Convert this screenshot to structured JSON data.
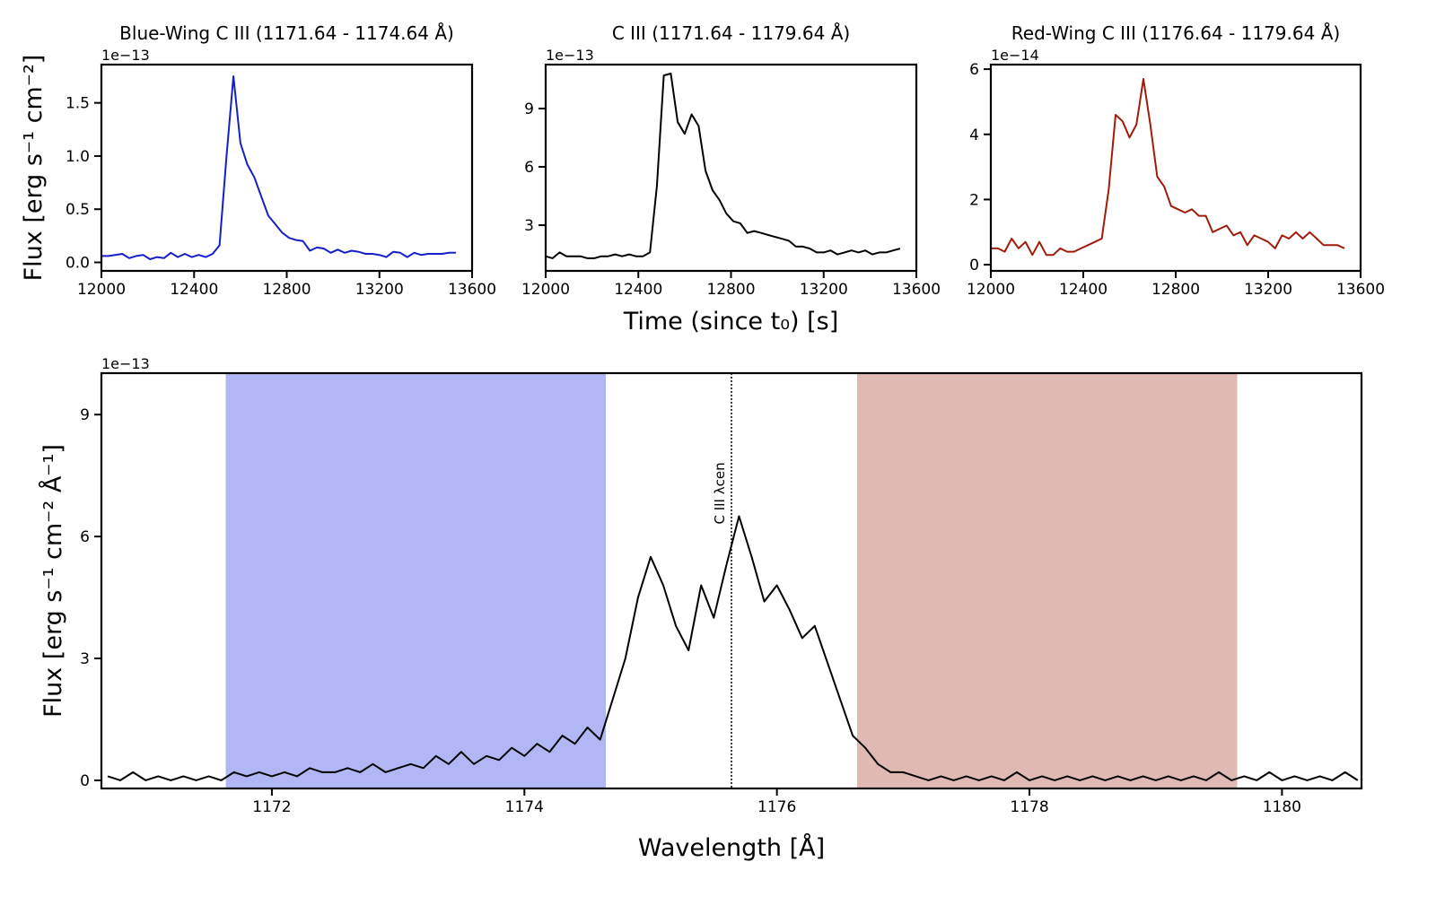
{
  "chart_data": [
    {
      "type": "line",
      "title": "Blue-Wing C III (1171.64 - 1174.64 Å)",
      "offset_label": "1e−13",
      "ylabel": "Flux [erg s⁻¹ cm⁻²]",
      "x": [
        12000,
        12030,
        12060,
        12090,
        12120,
        12150,
        12180,
        12210,
        12240,
        12270,
        12300,
        12330,
        12360,
        12390,
        12420,
        12450,
        12480,
        12510,
        12540,
        12570,
        12600,
        12630,
        12660,
        12690,
        12720,
        12750,
        12780,
        12810,
        12840,
        12870,
        12900,
        12930,
        12960,
        12990,
        13020,
        13050,
        13080,
        13110,
        13140,
        13170,
        13200,
        13230,
        13260,
        13290,
        13320,
        13350,
        13380,
        13410,
        13440,
        13470,
        13500,
        13530
      ],
      "values": [
        0.06,
        0.06,
        0.07,
        0.08,
        0.04,
        0.06,
        0.07,
        0.03,
        0.05,
        0.04,
        0.09,
        0.05,
        0.08,
        0.05,
        0.07,
        0.05,
        0.08,
        0.16,
        1.0,
        1.75,
        1.12,
        0.92,
        0.8,
        0.62,
        0.44,
        0.36,
        0.28,
        0.23,
        0.21,
        0.2,
        0.11,
        0.14,
        0.13,
        0.09,
        0.12,
        0.09,
        0.11,
        0.1,
        0.08,
        0.08,
        0.07,
        0.05,
        0.1,
        0.09,
        0.05,
        0.09,
        0.07,
        0.08,
        0.08,
        0.08,
        0.09,
        0.09
      ],
      "color": "#1520c8",
      "xlim": [
        12000,
        13600
      ],
      "xticks": [
        12000,
        12400,
        12800,
        13200,
        13600
      ],
      "ylim": [
        -0.08,
        1.86
      ],
      "yticks": [
        {
          "value": 0,
          "label": "0.0"
        },
        0.5,
        {
          "value": 1,
          "label": "1.0"
        },
        1.5
      ]
    },
    {
      "type": "line",
      "title": "C III (1171.64 - 1179.64 Å)",
      "offset_label": "1e−13",
      "xlabel": "Time (since t₀) [s]",
      "x": [
        12000,
        12030,
        12060,
        12090,
        12120,
        12150,
        12180,
        12210,
        12240,
        12270,
        12300,
        12330,
        12360,
        12390,
        12420,
        12450,
        12480,
        12510,
        12540,
        12570,
        12600,
        12630,
        12660,
        12690,
        12720,
        12750,
        12780,
        12810,
        12840,
        12870,
        12900,
        12930,
        12960,
        12990,
        13020,
        13050,
        13080,
        13110,
        13140,
        13170,
        13200,
        13230,
        13260,
        13290,
        13320,
        13350,
        13380,
        13410,
        13440,
        13470,
        13500,
        13530
      ],
      "values": [
        1.4,
        1.3,
        1.6,
        1.4,
        1.4,
        1.4,
        1.3,
        1.3,
        1.4,
        1.4,
        1.5,
        1.4,
        1.5,
        1.4,
        1.4,
        1.6,
        5.0,
        10.7,
        10.8,
        8.3,
        7.7,
        8.7,
        8.1,
        5.8,
        4.8,
        4.3,
        3.6,
        3.2,
        3.1,
        2.6,
        2.7,
        2.6,
        2.5,
        2.4,
        2.3,
        2.2,
        1.9,
        1.9,
        1.8,
        1.6,
        1.6,
        1.7,
        1.5,
        1.6,
        1.7,
        1.6,
        1.7,
        1.5,
        1.6,
        1.6,
        1.7,
        1.8
      ],
      "color": "#000000",
      "xlim": [
        12000,
        13600
      ],
      "xticks": [
        12000,
        12400,
        12800,
        13200,
        13600
      ],
      "ylim": [
        0.65,
        11.26
      ],
      "yticks": [
        3,
        6,
        9
      ]
    },
    {
      "type": "line",
      "title": "Red-Wing C III (1176.64 - 1179.64 Å)",
      "offset_label": "1e−14",
      "x": [
        12000,
        12030,
        12060,
        12090,
        12120,
        12150,
        12180,
        12210,
        12240,
        12270,
        12300,
        12330,
        12360,
        12390,
        12420,
        12450,
        12480,
        12510,
        12540,
        12570,
        12600,
        12630,
        12660,
        12690,
        12720,
        12750,
        12780,
        12810,
        12840,
        12870,
        12900,
        12930,
        12960,
        12990,
        13020,
        13050,
        13080,
        13110,
        13140,
        13170,
        13200,
        13230,
        13260,
        13290,
        13320,
        13350,
        13380,
        13410,
        13440,
        13470,
        13500,
        13530
      ],
      "values": [
        0.5,
        0.5,
        0.4,
        0.8,
        0.5,
        0.7,
        0.3,
        0.7,
        0.3,
        0.3,
        0.5,
        0.4,
        0.4,
        0.5,
        0.6,
        0.7,
        0.8,
        2.3,
        4.6,
        4.4,
        3.9,
        4.3,
        5.7,
        4.3,
        2.7,
        2.4,
        1.8,
        1.7,
        1.6,
        1.7,
        1.5,
        1.5,
        1.0,
        1.1,
        1.2,
        0.9,
        1.0,
        0.6,
        0.9,
        0.8,
        0.7,
        0.5,
        0.9,
        0.8,
        1.0,
        0.8,
        1.0,
        0.8,
        0.6,
        0.6,
        0.6,
        0.5
      ],
      "color": "#a01c0a",
      "xlim": [
        12000,
        13600
      ],
      "xticks": [
        12000,
        12400,
        12800,
        13200,
        13600
      ],
      "ylim": [
        -0.19,
        6.14
      ],
      "yticks": [
        0,
        2,
        4,
        6
      ]
    },
    {
      "type": "line",
      "offset_label": "1e−13",
      "xlabel": "Wavelength [Å]",
      "ylabel": "Flux [erg s⁻¹ cm⁻² Å⁻¹]",
      "x": [
        1170.7,
        1170.8,
        1170.9,
        1171.0,
        1171.1,
        1171.2,
        1171.3,
        1171.4,
        1171.5,
        1171.6,
        1171.7,
        1171.8,
        1171.9,
        1172.0,
        1172.1,
        1172.2,
        1172.3,
        1172.4,
        1172.5,
        1172.6,
        1172.7,
        1172.8,
        1172.9,
        1173.0,
        1173.1,
        1173.2,
        1173.3,
        1173.4,
        1173.5,
        1173.6,
        1173.7,
        1173.8,
        1173.9,
        1174.0,
        1174.1,
        1174.2,
        1174.3,
        1174.4,
        1174.5,
        1174.6,
        1174.7,
        1174.8,
        1174.9,
        1175.0,
        1175.1,
        1175.2,
        1175.3,
        1175.4,
        1175.5,
        1175.6,
        1175.7,
        1175.8,
        1175.9,
        1176.0,
        1176.1,
        1176.2,
        1176.3,
        1176.4,
        1176.5,
        1176.6,
        1176.7,
        1176.8,
        1176.9,
        1177.0,
        1177.1,
        1177.2,
        1177.3,
        1177.4,
        1177.5,
        1177.6,
        1177.7,
        1177.8,
        1177.9,
        1178.0,
        1178.1,
        1178.2,
        1178.3,
        1178.4,
        1178.5,
        1178.6,
        1178.7,
        1178.8,
        1178.9,
        1179.0,
        1179.1,
        1179.2,
        1179.3,
        1179.4,
        1179.5,
        1179.6,
        1179.7,
        1179.8,
        1179.9,
        1180.0,
        1180.1,
        1180.2,
        1180.3,
        1180.4,
        1180.5,
        1180.6
      ],
      "values": [
        0.1,
        0.0,
        0.2,
        0.0,
        0.1,
        0.0,
        0.1,
        0.0,
        0.1,
        0.0,
        0.2,
        0.1,
        0.2,
        0.1,
        0.2,
        0.1,
        0.3,
        0.2,
        0.2,
        0.3,
        0.2,
        0.4,
        0.2,
        0.3,
        0.4,
        0.3,
        0.6,
        0.4,
        0.7,
        0.4,
        0.6,
        0.5,
        0.8,
        0.6,
        0.9,
        0.7,
        1.1,
        0.9,
        1.3,
        1.0,
        2.0,
        3.0,
        4.5,
        5.5,
        4.8,
        3.8,
        3.2,
        4.8,
        4.0,
        5.3,
        6.5,
        5.5,
        4.4,
        4.8,
        4.2,
        3.5,
        3.8,
        2.9,
        2.0,
        1.1,
        0.8,
        0.4,
        0.2,
        0.2,
        0.1,
        0.0,
        0.1,
        0.0,
        0.1,
        0.0,
        0.1,
        0.0,
        0.2,
        0.0,
        0.1,
        0.0,
        0.1,
        0.0,
        0.1,
        0.0,
        0.1,
        0.0,
        0.1,
        0.0,
        0.1,
        0.0,
        0.1,
        0.0,
        0.2,
        0.0,
        0.1,
        0.0,
        0.2,
        0.0,
        0.1,
        0.0,
        0.1,
        0.0,
        0.2,
        0.0
      ],
      "color": "#000000",
      "xlim": [
        1170.65,
        1180.63
      ],
      "xticks": [
        1172,
        1174,
        1176,
        1178,
        1180
      ],
      "ylim": [
        -0.2,
        10.02
      ],
      "yticks": [
        0,
        3,
        6,
        9
      ],
      "spans": [
        {
          "range": [
            1171.64,
            1174.64
          ],
          "color": "#b1b7f4"
        },
        {
          "range": [
            1176.64,
            1179.64
          ],
          "color": "#e1b9b3"
        }
      ],
      "vline": {
        "x": 1175.64,
        "label": "C III λcen"
      }
    }
  ]
}
